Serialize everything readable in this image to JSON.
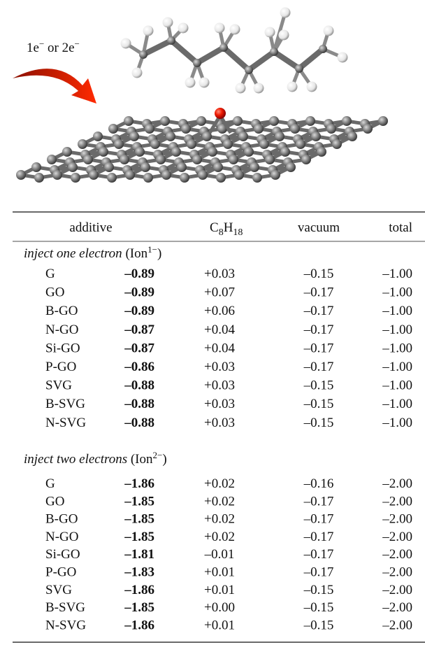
{
  "figure": {
    "label": [
      "1e",
      "−",
      " or 2e",
      "−"
    ]
  },
  "table": {
    "header": {
      "additive": "additive",
      "solvent": [
        "C",
        "8",
        "H",
        "18"
      ],
      "vacuum": "vacuum",
      "total": "total"
    },
    "sections": [
      {
        "title": {
          "italic": "inject one electron",
          "label": " (Ion",
          "sup": "1−",
          "close": ")"
        },
        "rows": [
          [
            "G",
            "–0.89",
            "+0.03",
            "–0.15",
            "–1.00"
          ],
          [
            "GO",
            "–0.89",
            "+0.07",
            "–0.17",
            "–1.00"
          ],
          [
            "B-GO",
            "–0.89",
            "+0.06",
            "–0.17",
            "–1.00"
          ],
          [
            "N-GO",
            "–0.87",
            "+0.04",
            "–0.17",
            "–1.00"
          ],
          [
            "Si-GO",
            "–0.87",
            "+0.04",
            "–0.17",
            "–1.00"
          ],
          [
            "P-GO",
            "–0.86",
            "+0.03",
            "–0.17",
            "–1.00"
          ],
          [
            "SVG",
            "–0.88",
            "+0.03",
            "–0.15",
            "–1.00"
          ],
          [
            "B-SVG",
            "–0.88",
            "+0.03",
            "–0.15",
            "–1.00"
          ],
          [
            "N-SVG",
            "–0.88",
            "+0.03",
            "–0.15",
            "–1.00"
          ]
        ]
      },
      {
        "title": {
          "italic": "inject two electrons",
          "label": " (Ion",
          "sup": "2−",
          "close": ")"
        },
        "rows": [
          [
            "G",
            "–1.86",
            "+0.02",
            "–0.16",
            "–2.00"
          ],
          [
            "GO",
            "–1.85",
            "+0.02",
            "–0.17",
            "–2.00"
          ],
          [
            "B-GO",
            "–1.85",
            "+0.02",
            "–0.17",
            "–2.00"
          ],
          [
            "N-GO",
            "–1.85",
            "+0.02",
            "–0.17",
            "–2.00"
          ],
          [
            "Si-GO",
            "–1.81",
            "–0.01",
            "–0.17",
            "–2.00"
          ],
          [
            "P-GO",
            "–1.83",
            "+0.01",
            "–0.17",
            "–2.00"
          ],
          [
            "SVG",
            "–1.86",
            "+0.01",
            "–0.15",
            "–2.00"
          ],
          [
            "B-SVG",
            "–1.85",
            "+0.00",
            "–0.15",
            "–2.00"
          ],
          [
            "N-SVG",
            "–1.86",
            "+0.01",
            "–0.15",
            "–2.00"
          ]
        ]
      }
    ]
  }
}
